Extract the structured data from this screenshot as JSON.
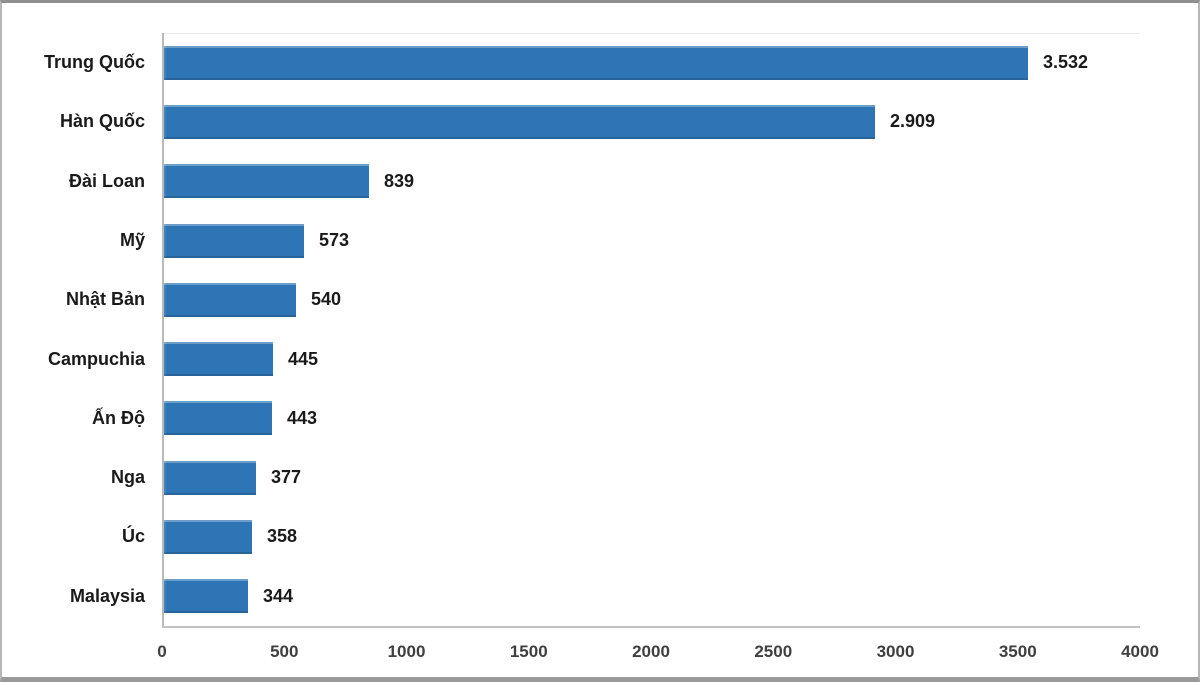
{
  "chart_data": {
    "type": "bar",
    "orientation": "horizontal",
    "title": "",
    "xlabel": "",
    "ylabel": "",
    "categories": [
      "Trung Quốc",
      "Hàn Quốc",
      "Đài Loan",
      "Mỹ",
      "Nhật Bản",
      "Campuchia",
      "Ấn Độ",
      "Nga",
      "Úc",
      "Malaysia"
    ],
    "values": [
      3532,
      2909,
      839,
      573,
      540,
      445,
      443,
      377,
      358,
      344
    ],
    "value_labels": [
      "3.532",
      "2.909",
      "839",
      "573",
      "540",
      "445",
      "443",
      "377",
      "358",
      "344"
    ],
    "xlim": [
      0,
      4000
    ],
    "x_ticks": [
      0,
      500,
      1000,
      1500,
      2000,
      2500,
      3000,
      3500,
      4000
    ],
    "x_tick_labels": [
      "0",
      "500",
      "1000",
      "1500",
      "2000",
      "2500",
      "3000",
      "3500",
      "4000"
    ],
    "grid": false,
    "legend": false,
    "colors": {
      "bar": "#2e75b5",
      "axis": "#c3c3c3",
      "category_label": "#1a1a1a",
      "value_label": "#1a1a1a",
      "tick_label": "#3f3f3f"
    }
  }
}
